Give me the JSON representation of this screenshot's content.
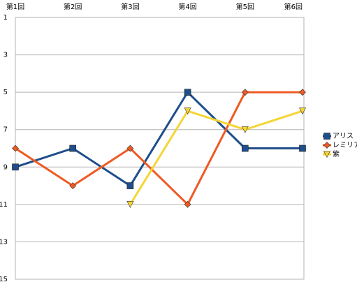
{
  "chart_data": {
    "type": "line",
    "categories": [
      "第1回",
      "第2回",
      "第3回",
      "第4回",
      "第5回",
      "第6回"
    ],
    "series": [
      {
        "name": "アリス",
        "color": "#1f4e8c",
        "marker": "square",
        "values": [
          9,
          8,
          10,
          5,
          8,
          8
        ]
      },
      {
        "name": "レミリア",
        "color": "#ef5a23",
        "marker": "diamond",
        "values": [
          8,
          10,
          8,
          11,
          5,
          5
        ]
      },
      {
        "name": "紫",
        "color": "#f5d536",
        "marker": "triangle-down",
        "values": [
          null,
          null,
          11,
          6,
          7,
          6
        ]
      }
    ],
    "ylim": [
      1,
      15
    ],
    "y_reversed": true,
    "yticks": [
      1,
      3,
      5,
      7,
      9,
      11,
      13,
      15
    ],
    "grid": true,
    "legend": "right",
    "x_axis_position": "top"
  }
}
